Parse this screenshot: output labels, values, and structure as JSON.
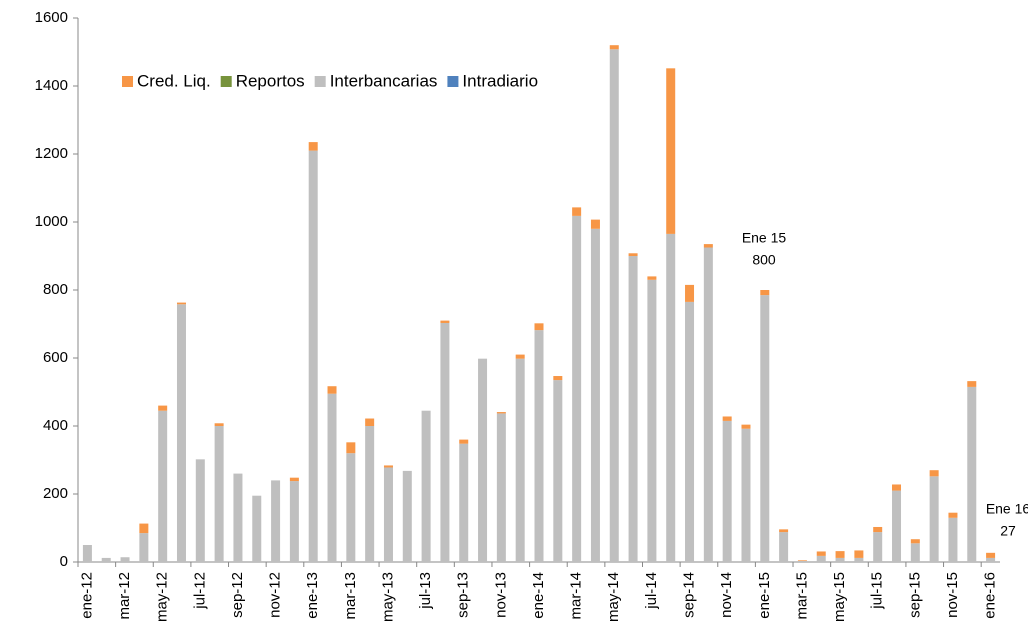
{
  "chart_data": {
    "type": "stacked-bar",
    "categories": [
      "ene-12",
      null,
      "mar-12",
      null,
      "may-12",
      null,
      "jul-12",
      null,
      "sep-12",
      null,
      "nov-12",
      null,
      "ene-13",
      null,
      "mar-13",
      null,
      "may-13",
      null,
      "jul-13",
      null,
      "sep-13",
      null,
      "nov-13",
      null,
      "ene-14",
      null,
      "mar-14",
      null,
      "may-14",
      null,
      "jul-14",
      null,
      "sep-14",
      null,
      "nov-14",
      null,
      "ene-15",
      null,
      "mar-15",
      null,
      "may-15",
      null,
      "jul-15",
      null,
      "sep-15",
      null,
      "nov-15",
      null,
      "ene-16"
    ],
    "series": [
      {
        "name": "Intradiario",
        "color": "#4f81bd",
        "values": [
          0,
          0,
          0,
          0,
          0,
          0,
          0,
          0,
          0,
          0,
          0,
          0,
          0,
          0,
          0,
          0,
          0,
          0,
          0,
          0,
          0,
          0,
          0,
          0,
          0,
          0,
          0,
          0,
          0,
          0,
          0,
          0,
          0,
          0,
          0,
          0,
          0,
          0,
          0,
          0,
          0,
          0,
          0,
          0,
          0,
          0,
          0,
          0,
          0
        ]
      },
      {
        "name": "Interbancarias",
        "color": "#bfbfbf",
        "values": [
          50,
          12,
          14,
          85,
          445,
          758,
          302,
          400,
          260,
          195,
          240,
          238,
          1210,
          495,
          320,
          400,
          278,
          268,
          445,
          703,
          348,
          598,
          437,
          598,
          682,
          535,
          1018,
          980,
          1508,
          900,
          830,
          965,
          765,
          925,
          415,
          392,
          785,
          88,
          3,
          18,
          12,
          12,
          88,
          210,
          55,
          252,
          130,
          515,
          12
        ]
      },
      {
        "name": "Reportos",
        "color": "#77933c",
        "values": [
          0,
          0,
          0,
          0,
          0,
          0,
          0,
          0,
          0,
          0,
          0,
          0,
          0,
          0,
          0,
          0,
          0,
          0,
          0,
          0,
          0,
          0,
          0,
          0,
          0,
          0,
          0,
          0,
          0,
          0,
          0,
          0,
          0,
          0,
          0,
          0,
          0,
          0,
          0,
          0,
          0,
          0,
          0,
          0,
          0,
          0,
          0,
          0,
          0
        ]
      },
      {
        "name": "Cred. Liq.",
        "color": "#f79646",
        "values": [
          0,
          0,
          0,
          28,
          15,
          5,
          0,
          8,
          0,
          0,
          0,
          10,
          25,
          22,
          32,
          22,
          6,
          0,
          0,
          7,
          12,
          0,
          4,
          12,
          20,
          12,
          25,
          27,
          12,
          8,
          10,
          487,
          50,
          10,
          13,
          12,
          15,
          8,
          2,
          13,
          20,
          22,
          15,
          18,
          12,
          18,
          15,
          17,
          15
        ]
      }
    ],
    "ylim": [
      0,
      1600
    ],
    "yticks": [
      0,
      200,
      400,
      600,
      800,
      1000,
      1200,
      1400,
      1600
    ],
    "annotations": [
      {
        "text": [
          "Ene 15",
          "800"
        ]
      },
      {
        "text": [
          "Ene 16",
          "27"
        ]
      }
    ]
  }
}
